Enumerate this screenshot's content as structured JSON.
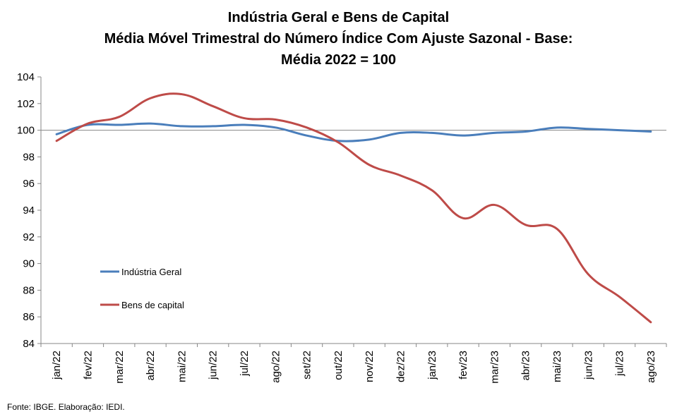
{
  "chart_data": {
    "type": "line",
    "title_lines": [
      "Indústria Geral e Bens de Capital",
      "Média Móvel Trimestral do Número Índice Com Ajuste Sazonal - Base:",
      "Média 2022 = 100"
    ],
    "categories": [
      "jan/22",
      "fev/22",
      "mar/22",
      "abr/22",
      "mai/22",
      "jun/22",
      "jul/22",
      "ago/22",
      "set/22",
      "out/22",
      "nov/22",
      "dez/22",
      "jan/23",
      "fev/23",
      "mar/23",
      "abr/23",
      "mai/23",
      "jun/23",
      "jul/23",
      "ago/23"
    ],
    "series": [
      {
        "name": "Indústria Geral",
        "color": "#4a7ebb",
        "values": [
          99.7,
          100.4,
          100.4,
          100.5,
          100.3,
          100.3,
          100.4,
          100.2,
          99.6,
          99.2,
          99.3,
          99.8,
          99.8,
          99.6,
          99.8,
          99.9,
          100.2,
          100.1,
          100.0,
          99.9
        ]
      },
      {
        "name": "Bens de capital",
        "color": "#be4b48",
        "values": [
          99.2,
          100.5,
          101.0,
          102.4,
          102.7,
          101.8,
          100.9,
          100.8,
          100.2,
          99.1,
          97.4,
          96.6,
          95.5,
          93.4,
          94.4,
          92.9,
          92.6,
          89.2,
          87.5,
          85.6
        ]
      }
    ],
    "ylim": [
      84,
      104
    ],
    "yticks": [
      84,
      86,
      88,
      90,
      92,
      94,
      96,
      98,
      100,
      102,
      104
    ],
    "reference_line": 100,
    "legend_position": "lower-left",
    "grid": false,
    "source": "Fonte: IBGE. Elaboração: IEDI."
  }
}
